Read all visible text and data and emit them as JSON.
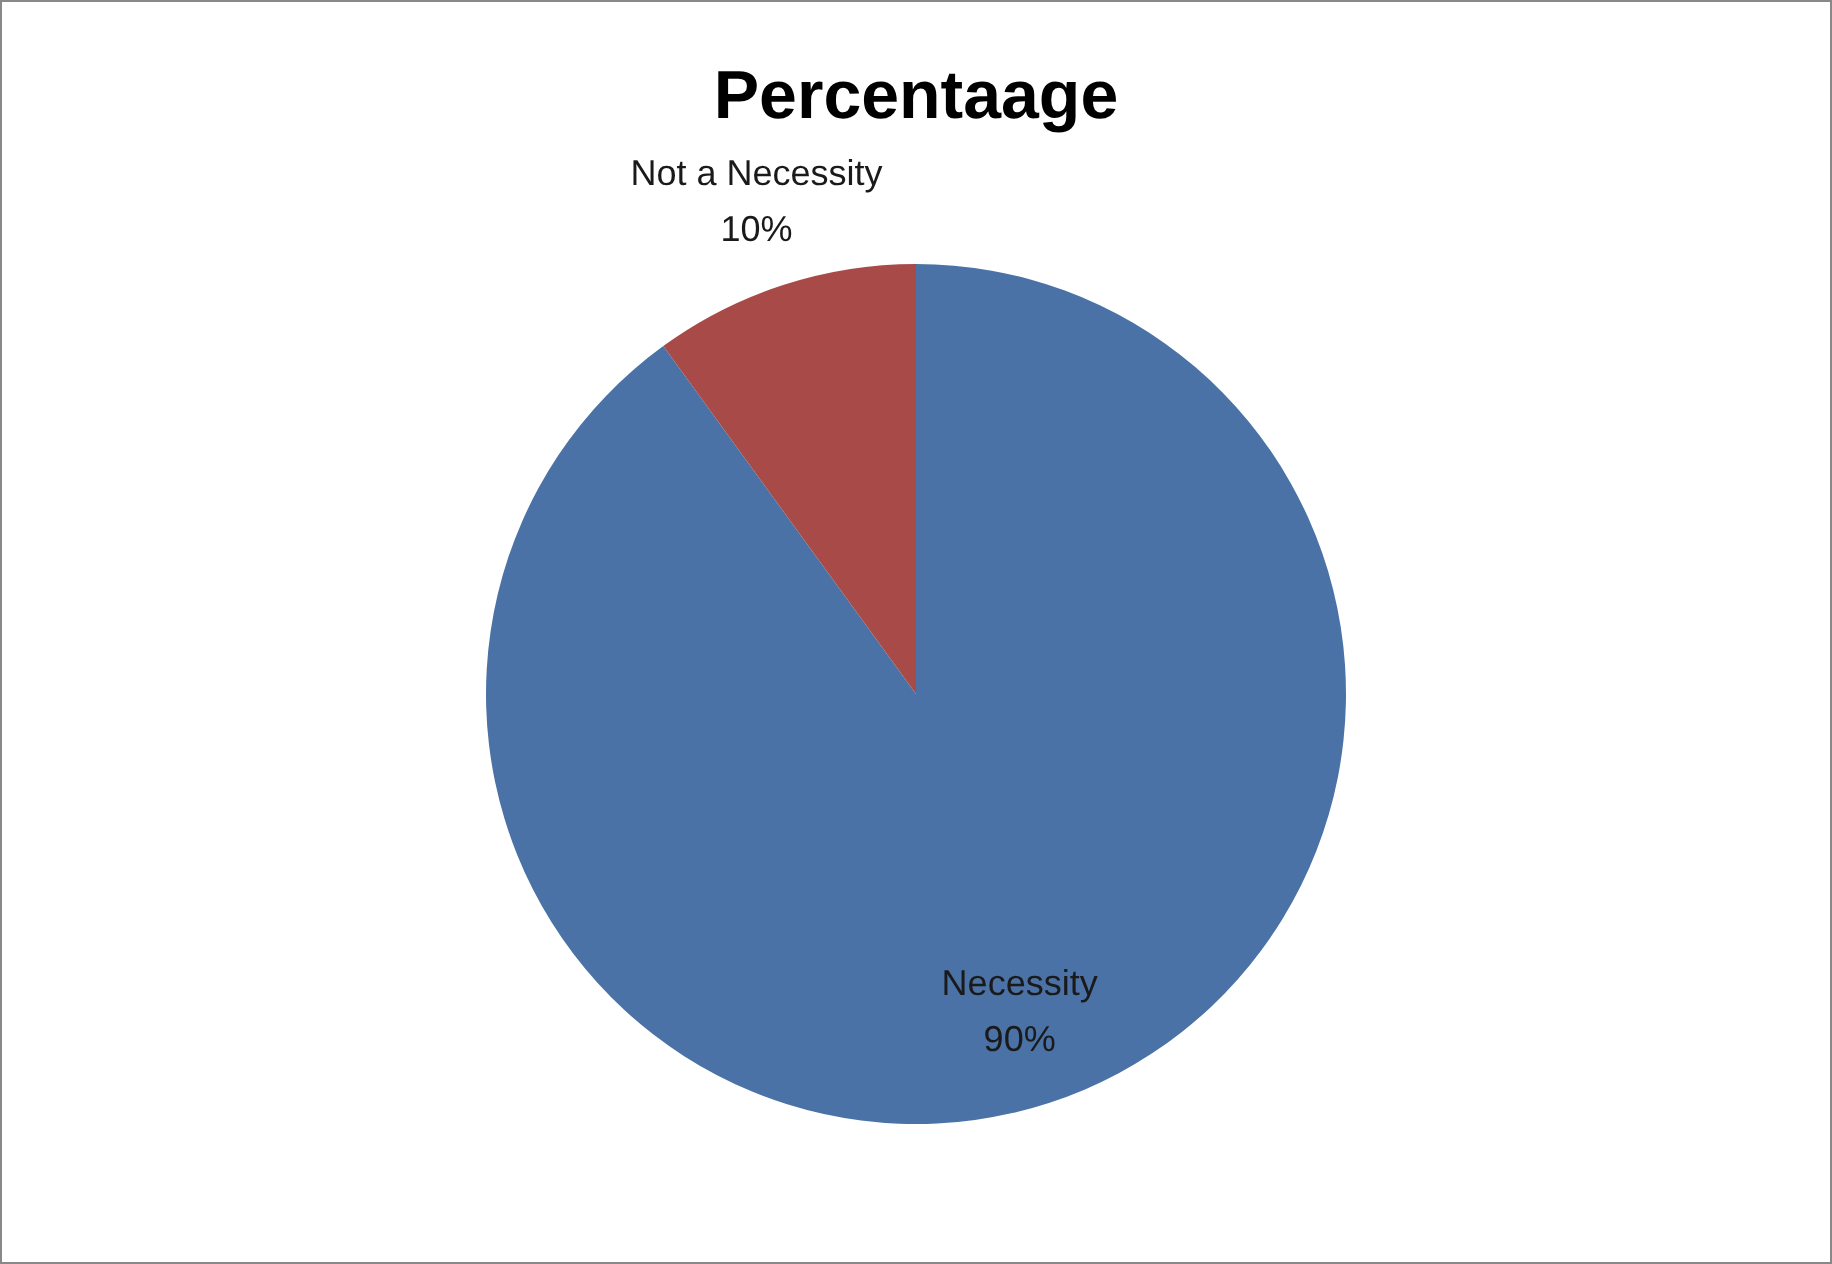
{
  "chart_data": {
    "type": "pie",
    "title": "Percentaage",
    "categories": [
      "Necessity",
      "Not a Necessity"
    ],
    "values": [
      90,
      10
    ],
    "value_labels": [
      "90%",
      "10%"
    ],
    "colors": [
      "#4a72a6",
      "#a84b48"
    ],
    "legend": false
  }
}
